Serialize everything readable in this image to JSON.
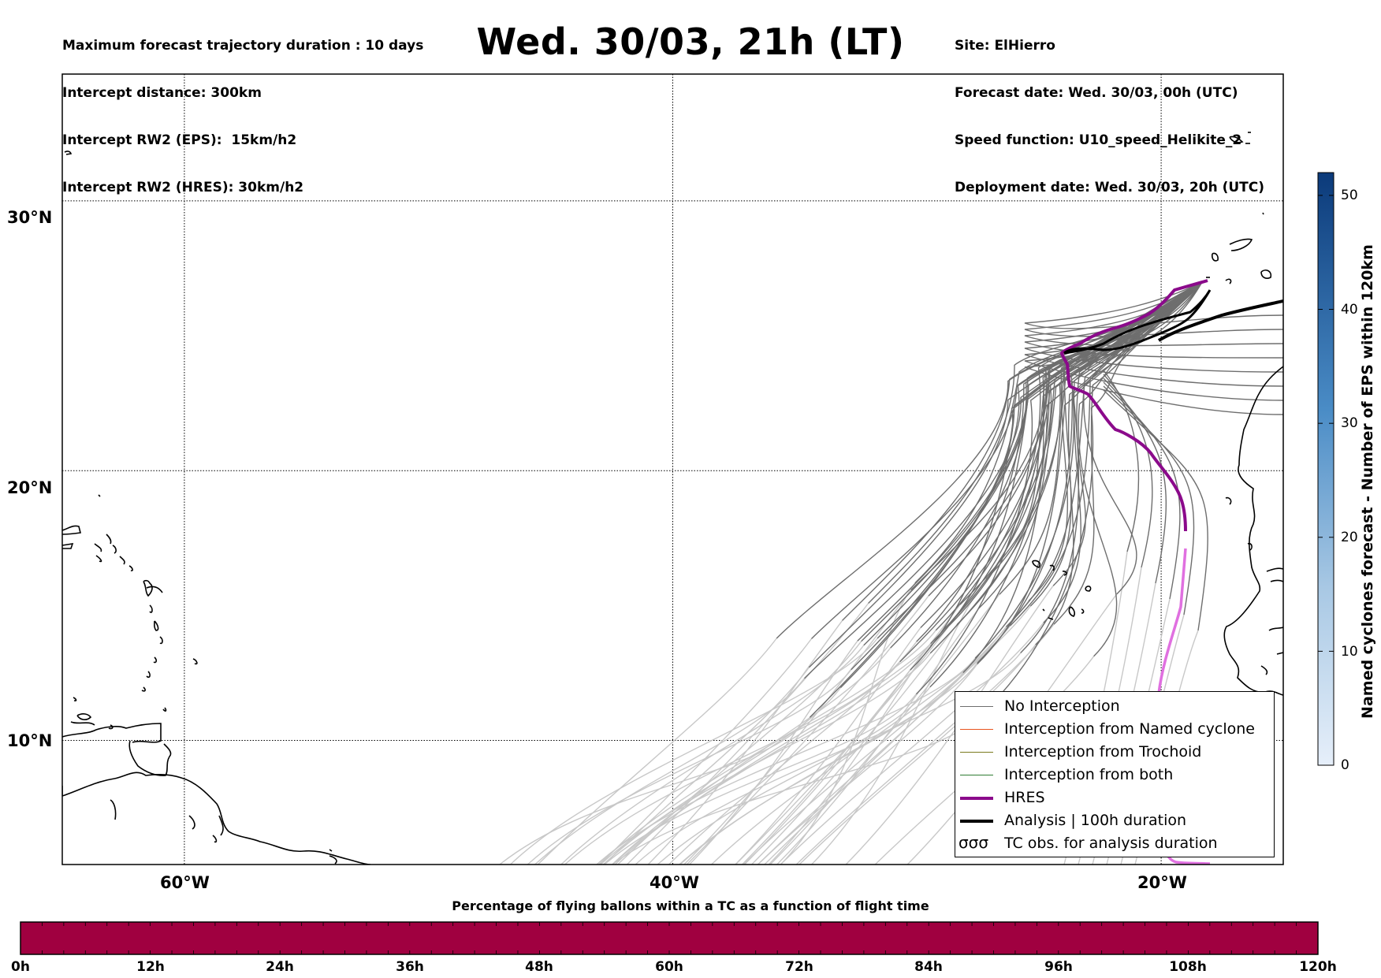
{
  "header": {
    "left_lines": [
      "Maximum forecast trajectory duration : 10 days",
      "Intercept distance: 300km",
      "Intercept RW2 (EPS):  15km/h2",
      "Intercept RW2 (HRES): 30km/h2"
    ],
    "title": "Wed. 30/03, 21h (LT)",
    "right_lines": [
      "Site: ElHierro",
      "Forecast date: Wed. 30/03, 00h (UTC)",
      "Speed function: U10_speed_Helikite_2",
      "Deployment date: Wed. 30/03, 20h (UTC)"
    ]
  },
  "map": {
    "lat_labels": [
      "30°N",
      "20°N",
      "10°N"
    ],
    "lon_labels": [
      "60°W",
      "40°W",
      "20°W"
    ],
    "lat_values": [
      30,
      20,
      10
    ],
    "lon_values": [
      -60,
      -40,
      -20
    ],
    "lon_range": [
      -65,
      -15
    ],
    "lat_range": [
      5.4,
      34.7
    ],
    "colors": {
      "no_interception": "#6e6e6e",
      "no_interception_light": "#c8c8c8",
      "named_cyclone": "#e8541e",
      "trochoid": "#7a7a1e",
      "both": "#2e7d32",
      "hres": "#8b0a8b",
      "hres_light": "#e070e0",
      "analysis": "#000000",
      "coast": "#000000"
    }
  },
  "legend": {
    "items": [
      {
        "label": "No Interception",
        "style": "thin",
        "color": "#6e6e6e"
      },
      {
        "label": "Interception from Named cyclone",
        "style": "thin",
        "color": "#e8541e"
      },
      {
        "label": "Interception from Trochoid",
        "style": "thin",
        "color": "#7a7a1e"
      },
      {
        "label": "Interception from both",
        "style": "thin",
        "color": "#2e7d32"
      },
      {
        "label": "HRES",
        "style": "thick",
        "color": "#8b0a8b"
      },
      {
        "label": "Analysis | 100h duration",
        "style": "thick",
        "color": "#000000"
      },
      {
        "label": "TC obs. for analysis duration",
        "style": "symbol",
        "symbol": "σσσ"
      }
    ]
  },
  "vertical_colorbar": {
    "label": "Named cyclones forecast - Number of EPS within 120km",
    "ticks": [
      "0",
      "10",
      "20",
      "30",
      "40",
      "50"
    ],
    "tick_values": [
      0,
      10,
      20,
      30,
      40,
      50
    ],
    "max": 52,
    "color_low": "#e6effa",
    "color_high": "#0b3a7a"
  },
  "horizontal_colorbar": {
    "title": "Percentage of flying ballons within a TC as a function of flight time",
    "ticks": [
      "0h",
      "12h",
      "24h",
      "36h",
      "48h",
      "60h",
      "72h",
      "84h",
      "96h",
      "108h",
      "120h"
    ],
    "fill_color": "#a00040"
  }
}
